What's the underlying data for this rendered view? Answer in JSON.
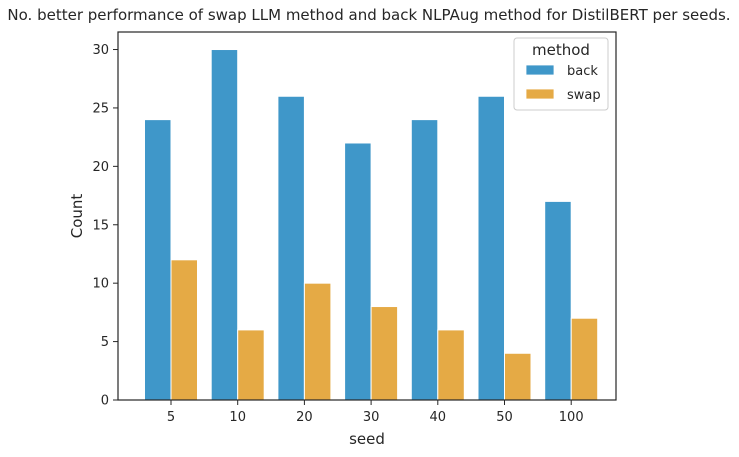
{
  "chart_data": {
    "type": "bar",
    "title": "No. better performance of swap LLM method and back NLPAug method for DistilBERT per seeds.",
    "xlabel": "seed",
    "ylabel": "Count",
    "categories": [
      "5",
      "10",
      "20",
      "30",
      "40",
      "50",
      "100"
    ],
    "series": [
      {
        "name": "back",
        "color": "#3f97c9",
        "values": [
          24,
          30,
          26,
          22,
          24,
          26,
          17
        ]
      },
      {
        "name": "swap",
        "color": "#e5aa45",
        "values": [
          12,
          6,
          10,
          8,
          6,
          4,
          7
        ]
      }
    ],
    "ylim": [
      0,
      31.5
    ],
    "yticks": [
      0,
      5,
      10,
      15,
      20,
      25,
      30
    ],
    "legend": {
      "title": "method",
      "placement": "top-right"
    },
    "grid": false
  }
}
